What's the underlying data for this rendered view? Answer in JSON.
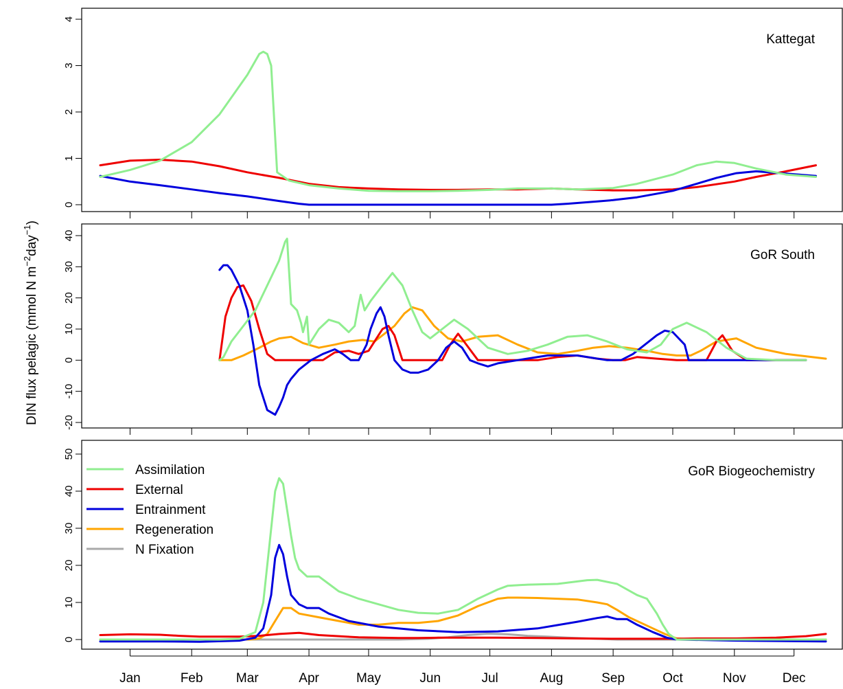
{
  "figure": {
    "ylabel_main": "DIN flux pelagic (mmol N m",
    "ylabel_sup1": "−2",
    "ylabel_mid": "day",
    "ylabel_sup2": "−1",
    "ylabel_end": ")"
  },
  "colors": {
    "Assimilation": "#90EE90",
    "External": "#EE0000",
    "Entrainment": "#0000DD",
    "Regeneration": "#FFA500",
    "N Fixation": "#A9A9A9"
  },
  "chart_data": [
    {
      "type": "line",
      "title": "Kattegat",
      "xlim": [
        0,
        365
      ],
      "ylim": [
        0,
        4
      ],
      "yticks": [
        0,
        1,
        2,
        3,
        4
      ],
      "xticks": [
        15,
        46,
        74,
        105,
        135,
        166,
        196,
        227,
        258,
        288,
        319,
        349
      ],
      "xticklabels": [
        "Jan",
        "Feb",
        "Mar",
        "Apr",
        "May",
        "Jun",
        "Jul",
        "Aug",
        "Sep",
        "Oct",
        "Nov",
        "Dec"
      ],
      "series": [
        {
          "name": "Assimilation",
          "x": [
            0,
            15,
            30,
            46,
            60,
            74,
            80,
            82,
            84,
            86,
            89,
            95,
            105,
            120,
            135,
            150,
            166,
            180,
            196,
            210,
            227,
            240,
            258,
            270,
            288,
            300,
            310,
            319,
            330,
            345,
            360
          ],
          "values": [
            0.6,
            0.75,
            0.95,
            1.35,
            1.95,
            2.8,
            3.25,
            3.3,
            3.25,
            3.0,
            0.7,
            0.52,
            0.42,
            0.35,
            0.3,
            0.29,
            0.29,
            0.3,
            0.32,
            0.35,
            0.35,
            0.33,
            0.36,
            0.45,
            0.65,
            0.85,
            0.93,
            0.9,
            0.78,
            0.65,
            0.6
          ]
        },
        {
          "name": "External",
          "x": [
            0,
            15,
            30,
            46,
            60,
            74,
            90,
            105,
            120,
            135,
            150,
            166,
            180,
            196,
            210,
            227,
            240,
            258,
            270,
            288,
            300,
            319,
            330,
            345,
            360
          ],
          "values": [
            0.85,
            0.95,
            0.97,
            0.93,
            0.83,
            0.7,
            0.58,
            0.45,
            0.38,
            0.35,
            0.33,
            0.32,
            0.32,
            0.33,
            0.33,
            0.35,
            0.33,
            0.31,
            0.31,
            0.33,
            0.38,
            0.5,
            0.6,
            0.72,
            0.85
          ]
        },
        {
          "name": "Entrainment",
          "x": [
            0,
            15,
            30,
            46,
            60,
            74,
            90,
            100,
            105,
            120,
            135,
            166,
            196,
            227,
            235,
            250,
            258,
            270,
            288,
            300,
            310,
            320,
            330,
            345,
            360
          ],
          "values": [
            0.62,
            0.5,
            0.42,
            0.33,
            0.25,
            0.18,
            0.08,
            0.02,
            0.0,
            0.0,
            0.0,
            0.0,
            0.0,
            0.0,
            0.02,
            0.07,
            0.1,
            0.16,
            0.3,
            0.45,
            0.58,
            0.68,
            0.72,
            0.67,
            0.62
          ]
        }
      ]
    },
    {
      "type": "line",
      "title": "GoR South",
      "xlim": [
        0,
        365
      ],
      "ylim": [
        -20,
        40
      ],
      "yticks": [
        -20,
        -10,
        0,
        10,
        20,
        30,
        40
      ],
      "xticks": [
        15,
        46,
        74,
        105,
        135,
        166,
        196,
        227,
        258,
        288,
        319,
        349
      ],
      "xticklabels": [
        "Jan",
        "Feb",
        "Mar",
        "Apr",
        "May",
        "Jun",
        "Jul",
        "Aug",
        "Sep",
        "Oct",
        "Nov",
        "Dec"
      ],
      "series": [
        {
          "name": "Assimilation",
          "x": [
            60,
            62,
            66,
            72,
            78,
            84,
            90,
            93,
            94,
            96,
            99,
            101,
            102,
            104,
            105,
            110,
            115,
            120,
            125,
            128,
            130,
            131,
            133,
            136,
            142,
            147,
            152,
            157,
            162,
            166,
            172,
            178,
            185,
            195,
            205,
            215,
            225,
            235,
            245,
            255,
            265,
            275,
            282,
            288,
            295,
            305,
            315,
            325,
            340,
            355
          ],
          "values": [
            0,
            1,
            6,
            11,
            16,
            24,
            32,
            38,
            39,
            18,
            16,
            12,
            9,
            14,
            5,
            10,
            13,
            12,
            9,
            11,
            18,
            21,
            16,
            19,
            24,
            28,
            24,
            16,
            9,
            7,
            10,
            13,
            10,
            4,
            2,
            3,
            5,
            7.5,
            8,
            6,
            3.5,
            2.5,
            5,
            10,
            12,
            9,
            4,
            0.5,
            0,
            0
          ]
        },
        {
          "name": "External",
          "x": [
            60,
            63,
            66,
            69,
            72,
            76,
            80,
            84,
            88,
            92,
            100,
            112,
            118,
            125,
            130,
            135,
            138,
            142,
            145,
            148,
            152,
            158,
            166,
            172,
            176,
            180,
            183,
            190,
            200,
            210,
            220,
            230,
            240,
            250,
            258,
            264,
            270,
            280,
            290,
            300,
            305,
            310,
            313,
            318,
            325,
            340,
            355
          ],
          "values": [
            0,
            14,
            20,
            23.5,
            24,
            19,
            10,
            2,
            0,
            0,
            0,
            0,
            2.5,
            3,
            2,
            3,
            6,
            10,
            11,
            8,
            0,
            0,
            0,
            0,
            5,
            8.5,
            6,
            0,
            0,
            0,
            0,
            1,
            1.5,
            0.5,
            0,
            0,
            1,
            0.5,
            0,
            0,
            0,
            6,
            8,
            3,
            0,
            0,
            0
          ]
        },
        {
          "name": "Entrainment",
          "x": [
            60,
            62,
            64,
            66,
            70,
            74,
            77,
            80,
            84,
            88,
            90,
            92,
            94,
            96,
            100,
            106,
            112,
            118,
            122,
            126,
            130,
            134,
            136,
            139,
            141,
            143,
            145,
            148,
            152,
            156,
            160,
            165,
            170,
            174,
            178,
            182,
            186,
            190,
            195,
            200,
            210,
            225,
            240,
            255,
            262,
            268,
            274,
            280,
            284,
            288,
            291,
            294,
            296,
            297,
            300,
            310,
            320,
            340,
            355
          ],
          "values": [
            29,
            30.5,
            30.5,
            29,
            24,
            16,
            5,
            -8,
            -16,
            -17.5,
            -15,
            -12,
            -8,
            -6,
            -3,
            0,
            2,
            3.5,
            2,
            0,
            0,
            5,
            10,
            15,
            17,
            14,
            8,
            0,
            -3,
            -4,
            -4,
            -3,
            0,
            4,
            6,
            4,
            0,
            -1,
            -2,
            -1,
            0,
            1.5,
            1.5,
            0,
            0,
            2,
            5,
            8,
            9.5,
            9,
            7,
            5,
            0,
            0,
            0,
            0,
            0,
            0,
            0
          ]
        },
        {
          "name": "Regeneration",
          "x": [
            60,
            66,
            72,
            80,
            86,
            90,
            96,
            102,
            110,
            118,
            125,
            132,
            138,
            142,
            148,
            153,
            157,
            162,
            168,
            175,
            182,
            190,
            200,
            210,
            220,
            230,
            240,
            248,
            256,
            265,
            275,
            283,
            290,
            297,
            302,
            310,
            320,
            330,
            345,
            365
          ],
          "values": [
            0,
            0,
            1.5,
            4,
            6,
            7,
            7.5,
            5.5,
            4,
            5,
            6,
            6.5,
            6,
            8,
            11,
            15,
            17,
            16,
            11,
            7,
            6,
            7.5,
            8,
            5,
            2.5,
            2,
            3,
            4,
            4.5,
            4,
            3,
            2,
            1.5,
            1.5,
            3,
            6,
            7,
            4,
            2,
            0.5
          ]
        }
      ]
    },
    {
      "type": "line",
      "title": "GoR Biogeochemistry",
      "xlim": [
        0,
        365
      ],
      "ylim": [
        0,
        50
      ],
      "yticks": [
        0,
        10,
        20,
        30,
        40,
        50
      ],
      "xticks": [
        15,
        46,
        74,
        105,
        135,
        166,
        196,
        227,
        258,
        288,
        319,
        349
      ],
      "xticklabels": [
        "Jan",
        "Feb",
        "Mar",
        "Apr",
        "May",
        "Jun",
        "Jul",
        "Aug",
        "Sep",
        "Oct",
        "Nov",
        "Dec"
      ],
      "legend": {
        "position": "top-left",
        "entries": [
          "Assimilation",
          "External",
          "Entrainment",
          "Regeneration",
          "N Fixation"
        ]
      },
      "series": [
        {
          "name": "Assimilation",
          "x": [
            0,
            30,
            60,
            70,
            78,
            82,
            85,
            88,
            90,
            92,
            94,
            96,
            98,
            100,
            104,
            110,
            115,
            120,
            130,
            140,
            150,
            160,
            170,
            180,
            190,
            200,
            205,
            215,
            230,
            245,
            250,
            260,
            270,
            275,
            280,
            283,
            286,
            290,
            300,
            330,
            365
          ],
          "values": [
            0,
            0,
            0,
            0.2,
            2,
            10,
            25,
            40,
            43.5,
            42,
            35,
            28,
            22,
            19,
            17,
            17,
            15,
            13,
            11,
            9.5,
            8,
            7.2,
            7,
            8,
            11,
            13.5,
            14.5,
            14.8,
            15,
            16,
            16.1,
            15,
            12,
            11,
            7,
            4,
            1.5,
            0,
            0,
            0,
            0
          ]
        },
        {
          "name": "External",
          "x": [
            0,
            15,
            30,
            40,
            50,
            60,
            70,
            80,
            90,
            100,
            105,
            110,
            120,
            130,
            140,
            150,
            160,
            170,
            180,
            200,
            220,
            240,
            260,
            280,
            290,
            300,
            320,
            340,
            355,
            365
          ],
          "values": [
            1.2,
            1.4,
            1.3,
            1.0,
            0.8,
            0.8,
            0.8,
            1.0,
            1.5,
            1.8,
            1.5,
            1.2,
            0.9,
            0.6,
            0.5,
            0.4,
            0.4,
            0.5,
            0.5,
            0.5,
            0.4,
            0.3,
            0.2,
            0.2,
            0.2,
            0.3,
            0.3,
            0.5,
            0.9,
            1.5
          ]
        },
        {
          "name": "Entrainment",
          "x": [
            0,
            30,
            50,
            70,
            78,
            82,
            86,
            88,
            90,
            92,
            94,
            96,
            100,
            104,
            110,
            115,
            125,
            140,
            160,
            180,
            200,
            220,
            240,
            250,
            255,
            260,
            265,
            270,
            278,
            285,
            290,
            320,
            365
          ],
          "values": [
            -0.5,
            -0.5,
            -0.6,
            -0.3,
            0.5,
            3,
            12,
            22,
            25.5,
            23,
            17,
            12,
            9.5,
            8.5,
            8.5,
            7,
            5,
            3.5,
            2.5,
            2,
            2.2,
            3,
            4.8,
            5.8,
            6.2,
            5.5,
            5.5,
            4,
            2,
            0.5,
            0,
            -0.3,
            -0.5
          ]
        },
        {
          "name": "Regeneration",
          "x": [
            0,
            60,
            75,
            80,
            84,
            88,
            92,
            96,
            100,
            110,
            120,
            130,
            140,
            150,
            160,
            170,
            180,
            190,
            200,
            205,
            210,
            220,
            230,
            240,
            250,
            255,
            260,
            266,
            272,
            278,
            284,
            290,
            300,
            365
          ],
          "values": [
            0,
            0,
            0,
            0.3,
            1.5,
            5,
            8.5,
            8.5,
            7,
            6,
            5,
            4,
            4,
            4.5,
            4.5,
            5,
            6.5,
            9,
            11,
            11.3,
            11.3,
            11.2,
            11,
            10.8,
            10,
            9.5,
            8,
            6,
            4.5,
            3,
            1.5,
            0.3,
            0,
            0
          ]
        },
        {
          "name": "N Fixation",
          "x": [
            0,
            150,
            165,
            175,
            185,
            195,
            205,
            215,
            225,
            235,
            245,
            260,
            365
          ],
          "values": [
            0,
            0,
            0.2,
            0.6,
            1.2,
            1.6,
            1.4,
            1.0,
            0.8,
            0.5,
            0.3,
            0,
            0
          ]
        }
      ]
    }
  ]
}
